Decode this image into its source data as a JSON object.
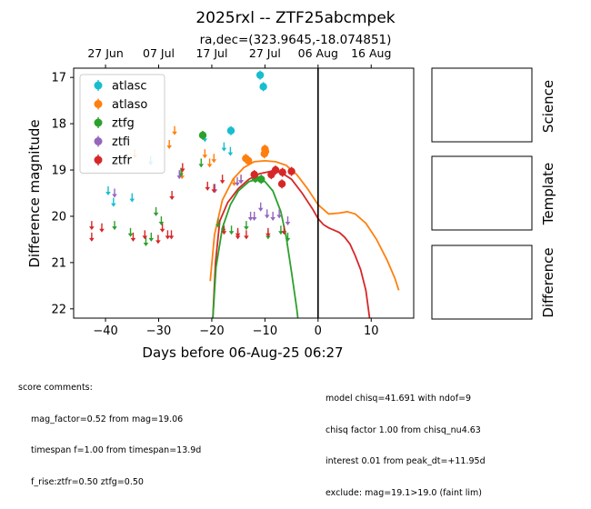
{
  "chart_data": {
    "type": "scatter",
    "title": "2025rxl -- ZTF25abcmpek",
    "subtitle": "ra,dec=(323.9645,-18.074851)",
    "xlabel": "Days before 06-Aug-25 06:27",
    "ylabel": "Difference magnitude",
    "xlim": [
      -46,
      18
    ],
    "ylim": [
      22.2,
      16.8
    ],
    "x_ticks": [
      -40,
      -30,
      -20,
      -10,
      0,
      10
    ],
    "y_ticks": [
      17,
      18,
      19,
      20,
      21,
      22
    ],
    "top_ticks": [
      {
        "label": "27 Jun",
        "x": -40
      },
      {
        "label": "07 Jul",
        "x": -30
      },
      {
        "label": "17 Jul",
        "x": -20
      },
      {
        "label": "27 Jul",
        "x": -10
      },
      {
        "label": "06 Aug",
        "x": 0
      },
      {
        "label": "16 Aug",
        "x": 10
      }
    ],
    "vline_x": 0,
    "legend_position": "top-left",
    "series": [
      {
        "name": "atlasc",
        "color": "#17becf",
        "detections": [
          [
            -10.9,
            16.95
          ],
          [
            -10.3,
            17.2
          ],
          [
            -16.4,
            18.15
          ]
        ],
        "limits": [
          [
            -39.5,
            19.45
          ],
          [
            -38.5,
            19.7
          ],
          [
            -35.0,
            19.6
          ],
          [
            -31.5,
            18.8
          ],
          [
            -21.3,
            18.3
          ],
          [
            -17.7,
            18.5
          ],
          [
            -16.5,
            18.6
          ]
        ]
      },
      {
        "name": "atlaso",
        "color": "#ff7f0e",
        "detections": [
          [
            -13.6,
            18.75
          ],
          [
            -13.1,
            18.8
          ],
          [
            -10.1,
            18.65
          ],
          [
            -10.0,
            18.55
          ],
          [
            -9.9,
            18.6
          ]
        ],
        "limits": [
          [
            -34.5,
            18.65
          ],
          [
            -28.0,
            18.45
          ],
          [
            -27.0,
            18.15
          ],
          [
            -25.6,
            19.1
          ],
          [
            -21.3,
            18.65
          ],
          [
            -20.4,
            18.85
          ],
          [
            -19.6,
            18.75
          ],
          [
            -15.8,
            19.25
          ],
          [
            -14.5,
            19.2
          ]
        ]
      },
      {
        "name": "ztfg",
        "color": "#2ca02c",
        "detections": [
          [
            -21.7,
            18.25
          ],
          [
            -11.8,
            19.18
          ],
          [
            -10.7,
            19.2
          ]
        ],
        "limits": [
          [
            -38.3,
            20.2
          ],
          [
            -35.3,
            20.35
          ],
          [
            -32.4,
            20.55
          ],
          [
            -31.4,
            20.45
          ],
          [
            -30.5,
            19.9
          ],
          [
            -29.5,
            20.1
          ],
          [
            -25.8,
            19.05
          ],
          [
            -22.0,
            18.85
          ],
          [
            -18.8,
            20.15
          ],
          [
            -17.8,
            20.25
          ],
          [
            -16.3,
            20.3
          ],
          [
            -13.5,
            20.2
          ],
          [
            -9.4,
            20.4
          ],
          [
            -7.0,
            20.3
          ],
          [
            -5.7,
            20.45
          ]
        ]
      },
      {
        "name": "ztfi",
        "color": "#9467bd",
        "detections": [],
        "limits": [
          [
            -38.3,
            19.5
          ],
          [
            -26.1,
            19.1
          ],
          [
            -19.4,
            19.4
          ],
          [
            -15.2,
            19.25
          ],
          [
            -14.5,
            19.2
          ],
          [
            -12.7,
            20.0
          ],
          [
            -12.0,
            20.0
          ],
          [
            -10.8,
            19.8
          ],
          [
            -9.6,
            19.95
          ],
          [
            -8.5,
            20.0
          ],
          [
            -7.3,
            19.95
          ],
          [
            -5.7,
            20.1
          ]
        ]
      },
      {
        "name": "ztfr",
        "color": "#d62728",
        "detections": [
          [
            -12.0,
            19.1
          ],
          [
            -8.8,
            19.1
          ],
          [
            -8.0,
            19.0
          ],
          [
            -6.7,
            19.05
          ],
          [
            -5.0,
            19.03
          ],
          [
            -6.8,
            19.3
          ]
        ],
        "limits": [
          [
            -42.6,
            20.2
          ],
          [
            -42.6,
            20.45
          ],
          [
            -40.7,
            20.25
          ],
          [
            -34.8,
            20.45
          ],
          [
            -32.6,
            20.4
          ],
          [
            -30.1,
            20.5
          ],
          [
            -29.3,
            20.25
          ],
          [
            -28.3,
            20.4
          ],
          [
            -27.6,
            20.4
          ],
          [
            -27.5,
            19.55
          ],
          [
            -25.5,
            18.95
          ],
          [
            -20.8,
            19.35
          ],
          [
            -19.6,
            19.4
          ],
          [
            -18.0,
            19.2
          ],
          [
            -17.7,
            20.3
          ],
          [
            -15.1,
            20.4
          ],
          [
            -15.1,
            20.35
          ],
          [
            -13.5,
            20.4
          ],
          [
            -9.4,
            20.35
          ],
          [
            -6.4,
            20.3
          ]
        ]
      }
    ],
    "model_curves": [
      {
        "band": "atlaso",
        "color": "#ff7f0e",
        "points": [
          [
            -20.3,
            21.4
          ],
          [
            -19.5,
            20.4
          ],
          [
            -18.0,
            19.65
          ],
          [
            -16.0,
            19.2
          ],
          [
            -14.0,
            18.95
          ],
          [
            -12.0,
            18.82
          ],
          [
            -10.0,
            18.8
          ],
          [
            -8.0,
            18.82
          ],
          [
            -6.0,
            18.9
          ],
          [
            -4.0,
            19.1
          ],
          [
            -2.0,
            19.4
          ],
          [
            0.0,
            19.75
          ],
          [
            2.0,
            19.95
          ],
          [
            4.0,
            19.93
          ],
          [
            5.5,
            19.9
          ],
          [
            7.0,
            19.95
          ],
          [
            9.0,
            20.15
          ],
          [
            11.0,
            20.5
          ],
          [
            13.0,
            20.95
          ],
          [
            14.5,
            21.35
          ],
          [
            15.2,
            21.6
          ]
        ]
      },
      {
        "band": "ztfr",
        "color": "#d62728",
        "points": [
          [
            -19.8,
            22.2
          ],
          [
            -19.3,
            21.0
          ],
          [
            -18.5,
            20.1
          ],
          [
            -17.0,
            19.7
          ],
          [
            -15.0,
            19.4
          ],
          [
            -13.0,
            19.2
          ],
          [
            -11.0,
            19.08
          ],
          [
            -9.0,
            19.03
          ],
          [
            -7.0,
            19.05
          ],
          [
            -5.0,
            19.2
          ],
          [
            -3.0,
            19.5
          ],
          [
            -1.0,
            19.85
          ],
          [
            0.0,
            20.05
          ],
          [
            1.0,
            20.18
          ],
          [
            2.0,
            20.25
          ],
          [
            3.0,
            20.3
          ],
          [
            4.0,
            20.35
          ],
          [
            5.0,
            20.45
          ],
          [
            6.0,
            20.6
          ],
          [
            7.0,
            20.85
          ],
          [
            8.0,
            21.15
          ],
          [
            9.0,
            21.6
          ],
          [
            9.7,
            22.2
          ]
        ]
      },
      {
        "band": "ztfg",
        "color": "#2ca02c",
        "points": [
          [
            -19.8,
            22.2
          ],
          [
            -19.2,
            21.1
          ],
          [
            -18.0,
            20.25
          ],
          [
            -16.5,
            19.75
          ],
          [
            -15.0,
            19.45
          ],
          [
            -13.0,
            19.25
          ],
          [
            -11.5,
            19.2
          ],
          [
            -10.0,
            19.25
          ],
          [
            -8.5,
            19.45
          ],
          [
            -7.0,
            19.9
          ],
          [
            -6.0,
            20.45
          ],
          [
            -5.0,
            21.2
          ],
          [
            -4.0,
            22.0
          ],
          [
            -3.8,
            22.2
          ]
        ]
      }
    ]
  },
  "panels": {
    "science_label": "Science",
    "template_label": "Template",
    "difference_label": "Difference"
  },
  "comments": {
    "left_heading": "score comments:",
    "left_lines": [
      "mag_factor=0.52 from mag=19.06",
      "timespan f=1.00 from timespan=13.9d",
      "f_rise:ztfr=0.50 ztfg=0.50"
    ],
    "right_lines": [
      "model chisq=41.691 with ndof=9",
      "chisq factor 1.00 from chisq_nu4.63",
      "interest 0.01 from peak_dt=+11.95d",
      "exclude: mag=19.1>19.0 (faint lim)"
    ]
  }
}
